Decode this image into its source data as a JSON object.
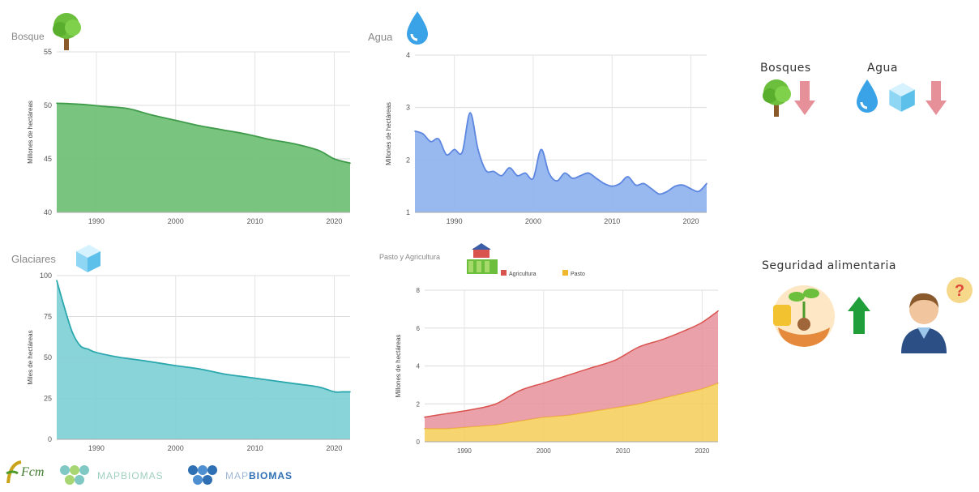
{
  "chart_data": [
    {
      "id": "bosque",
      "type": "area",
      "title": "Bosque",
      "ylabel": "Millones de hectáreas",
      "xlabel": "",
      "xlim": [
        1985,
        2022
      ],
      "ylim": [
        40,
        55
      ],
      "yticks": [
        40,
        45,
        50,
        55
      ],
      "xticks": [
        1990,
        2000,
        2010,
        2020
      ],
      "grid": true,
      "color": "#6abf72",
      "line_color": "#3f9b4a",
      "x": [
        1985,
        1988,
        1991,
        1994,
        1997,
        2000,
        2003,
        2006,
        2009,
        2012,
        2015,
        2018,
        2020,
        2022
      ],
      "values": [
        50.2,
        50.1,
        49.9,
        49.7,
        49.1,
        48.6,
        48.1,
        47.7,
        47.3,
        46.8,
        46.4,
        45.8,
        45.0,
        44.6
      ]
    },
    {
      "id": "agua",
      "type": "area",
      "title": "Agua",
      "ylabel": "Millones de hectáreas",
      "xlabel": "",
      "xlim": [
        1985,
        2022
      ],
      "ylim": [
        1,
        4
      ],
      "yticks": [
        1,
        2,
        3,
        4
      ],
      "xticks": [
        1990,
        2000,
        2010,
        2020
      ],
      "grid": true,
      "color": "#8db0ee",
      "line_color": "#5d86e0",
      "x": [
        1985,
        1986,
        1987,
        1988,
        1989,
        1990,
        1991,
        1992,
        1993,
        1994,
        1995,
        1996,
        1997,
        1998,
        1999,
        2000,
        2001,
        2002,
        2003,
        2004,
        2005,
        2006,
        2007,
        2008,
        2009,
        2010,
        2011,
        2012,
        2013,
        2014,
        2015,
        2016,
        2017,
        2018,
        2019,
        2020,
        2021,
        2022
      ],
      "values": [
        2.55,
        2.5,
        2.35,
        2.4,
        2.1,
        2.2,
        2.15,
        2.9,
        2.2,
        1.8,
        1.78,
        1.7,
        1.85,
        1.7,
        1.75,
        1.65,
        2.2,
        1.75,
        1.6,
        1.75,
        1.65,
        1.7,
        1.75,
        1.65,
        1.55,
        1.5,
        1.55,
        1.68,
        1.52,
        1.55,
        1.45,
        1.35,
        1.4,
        1.5,
        1.52,
        1.45,
        1.4,
        1.55
      ]
    },
    {
      "id": "glaciares",
      "type": "area",
      "title": "Glaciares",
      "ylabel": "Miles de hectáreas",
      "xlabel": "",
      "xlim": [
        1985,
        2022
      ],
      "ylim": [
        0,
        100
      ],
      "yticks": [
        0,
        25,
        50,
        75,
        100
      ],
      "xticks": [
        1990,
        2000,
        2010,
        2020
      ],
      "grid": true,
      "color": "#7ccfd4",
      "line_color": "#2ba7ae",
      "x": [
        1985,
        1986,
        1987,
        1988,
        1989,
        1990,
        1993,
        1996,
        2000,
        2003,
        2006,
        2009,
        2012,
        2015,
        2018,
        2020,
        2021,
        2022
      ],
      "values": [
        97,
        80,
        65,
        57,
        55,
        53,
        50,
        48,
        45,
        43,
        40,
        38,
        36,
        34,
        32,
        29,
        29,
        29
      ]
    },
    {
      "id": "pasto-agricultura",
      "type": "area",
      "title": "Pasto y Agricultura",
      "ylabel": "Millones de hectáreas",
      "xlabel": "",
      "xlim": [
        1985,
        2022
      ],
      "ylim": [
        0,
        8
      ],
      "yticks": [
        0,
        2,
        4,
        6,
        8
      ],
      "xticks": [
        1990,
        2000,
        2010,
        2020
      ],
      "grid": true,
      "stacked": true,
      "legend_position": "top",
      "x": [
        1985,
        1988,
        1991,
        1994,
        1997,
        2000,
        2003,
        2006,
        2009,
        2012,
        2015,
        2018,
        2020,
        2022
      ],
      "series": [
        {
          "name": "Pasto",
          "color": "#f5cc57",
          "line_color": "#f0b82e",
          "values": [
            0.7,
            0.7,
            0.8,
            0.9,
            1.1,
            1.3,
            1.4,
            1.6,
            1.8,
            2.0,
            2.3,
            2.6,
            2.8,
            3.1
          ]
        },
        {
          "name": "Agricultura",
          "color": "#e6909a",
          "line_color": "#d9534f",
          "values": [
            0.6,
            0.8,
            0.9,
            1.1,
            1.6,
            1.8,
            2.1,
            2.3,
            2.5,
            3.0,
            3.1,
            3.3,
            3.5,
            3.8
          ]
        }
      ]
    }
  ],
  "summary": {
    "bosques_label": "Bosques",
    "agua_label": "Agua",
    "seguridad_label": "Seguridad alimentaria"
  },
  "logos": {
    "fcm_text": "Fcm",
    "mapbiomas_1": "MAPBIOMAS",
    "mapbiomas_2_prefix": "MAP",
    "mapbiomas_2_suffix": "BIOMAS"
  },
  "icons": [
    "tree-icon",
    "water-drop-icon",
    "ice-cube-icon",
    "farm-icon",
    "arrow-down-icon",
    "arrow-up-icon",
    "seedling-icon",
    "person-question-icon"
  ]
}
